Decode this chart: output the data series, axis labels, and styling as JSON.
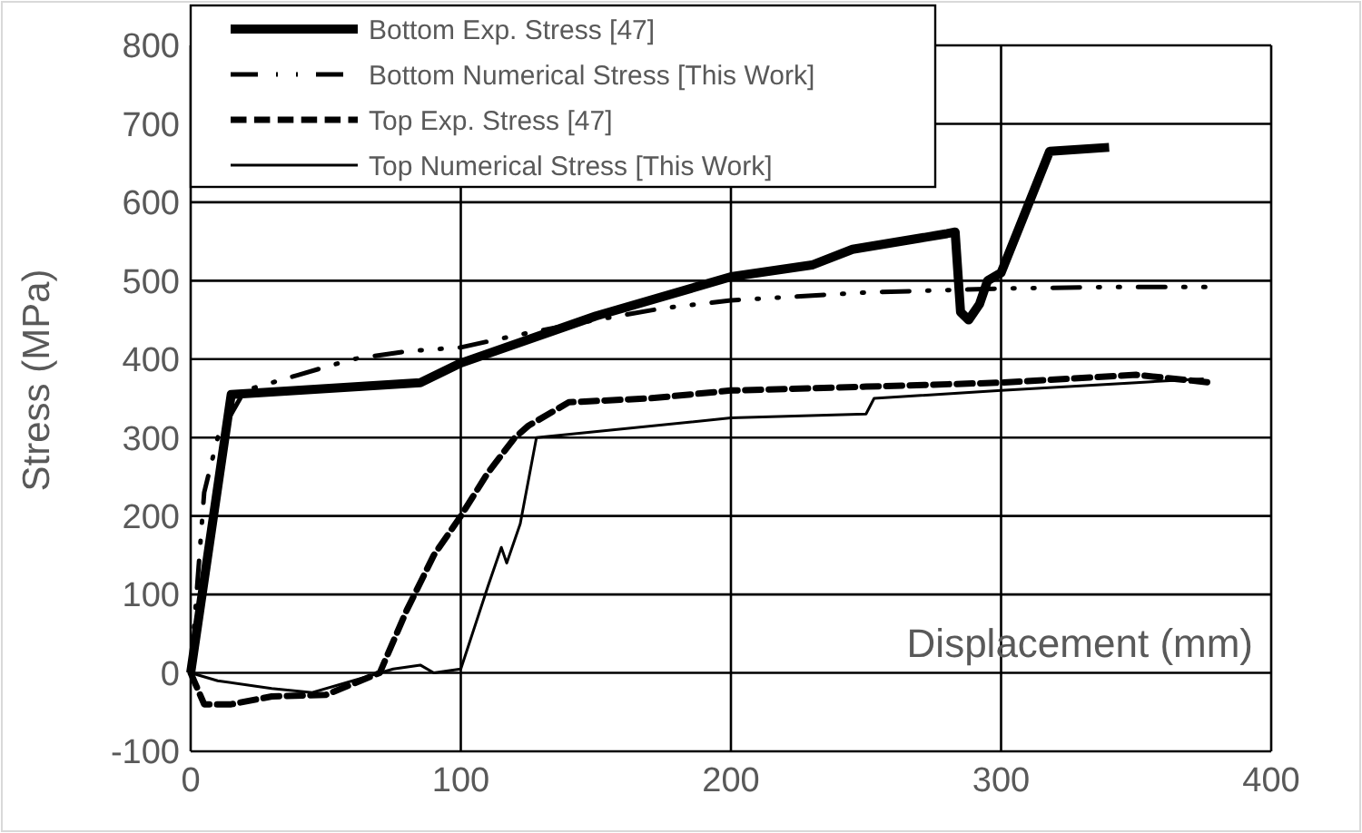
{
  "chart_data": {
    "type": "line",
    "xlabel": "Displacement (mm)",
    "ylabel": "Stress (MPa)",
    "xlim": [
      0,
      400
    ],
    "xticks": [
      0,
      100,
      200,
      300,
      400
    ],
    "ylim": [
      -100,
      800
    ],
    "yticks": [
      -100,
      0,
      100,
      200,
      300,
      400,
      500,
      600,
      700,
      800
    ],
    "grid": true,
    "legend": "top left",
    "marker": "none",
    "series": [
      {
        "name": "Bottom Exp. Stress [47]",
        "color": "#000000",
        "line_style": "solid",
        "x": [
          0,
          15,
          85,
          100,
          150,
          200,
          230,
          245,
          280,
          283,
          285,
          288,
          292,
          295,
          300,
          318,
          340
        ],
        "values": [
          0,
          355,
          370,
          395,
          455,
          505,
          520,
          540,
          560,
          562,
          460,
          450,
          470,
          500,
          510,
          665,
          670
        ]
      },
      {
        "name": "Bottom Numerical Stress [This Work]",
        "color": "#000000",
        "line_style": "dashdot",
        "x": [
          0,
          5,
          10,
          20,
          40,
          60,
          80,
          100,
          120,
          150,
          175,
          200,
          250,
          300,
          340,
          378
        ],
        "values": [
          0,
          230,
          300,
          360,
          380,
          400,
          410,
          415,
          430,
          450,
          465,
          475,
          485,
          490,
          492,
          492
        ]
      },
      {
        "name": "Top Exp. Stress [47]",
        "color": "#000000",
        "line_style": "dashed",
        "x": [
          0,
          5,
          15,
          30,
          50,
          70,
          80,
          90,
          100,
          110,
          120,
          125,
          140,
          170,
          200,
          250,
          300,
          350,
          378
        ],
        "values": [
          0,
          -40,
          -40,
          -30,
          -28,
          0,
          80,
          150,
          200,
          255,
          300,
          315,
          345,
          350,
          360,
          365,
          370,
          380,
          370
        ]
      },
      {
        "name": "Top Numerical Stress [This Work]",
        "color": "#000000",
        "line_style": "solid",
        "x": [
          0,
          10,
          30,
          45,
          75,
          85,
          90,
          100,
          110,
          115,
          117,
          122,
          128,
          200,
          250,
          253,
          300,
          350,
          375
        ],
        "values": [
          0,
          -10,
          -20,
          -25,
          5,
          10,
          0,
          5,
          110,
          160,
          140,
          190,
          300,
          325,
          330,
          350,
          360,
          370,
          375
        ]
      }
    ]
  }
}
